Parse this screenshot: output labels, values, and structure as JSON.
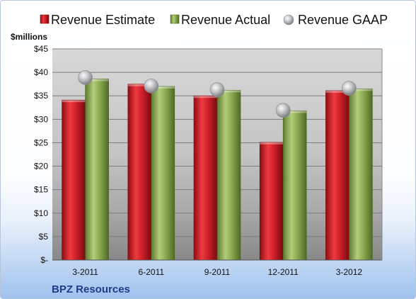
{
  "chart_data": {
    "type": "bar",
    "y_unit_label": "$millions",
    "categories": [
      "3-2011",
      "6-2011",
      "9-2011",
      "12-2011",
      "3-2012"
    ],
    "series": [
      {
        "name": "Revenue Estimate",
        "kind": "bar",
        "color": "#d0202a",
        "values": [
          34.1,
          37.5,
          35.0,
          25.1,
          36.1
        ]
      },
      {
        "name": "Revenue Actual",
        "kind": "bar",
        "color": "#8cad52",
        "values": [
          38.6,
          37.0,
          36.2,
          31.8,
          36.5
        ]
      },
      {
        "name": "Revenue GAAP",
        "kind": "marker",
        "color": "#b9bcc2",
        "values": [
          38.9,
          37.1,
          36.3,
          31.9,
          36.6
        ]
      }
    ],
    "y_ticks": [
      "$-",
      "$5",
      "$10",
      "$15",
      "$20",
      "$25",
      "$30",
      "$35",
      "$40",
      "$45"
    ],
    "ylim": [
      0,
      45
    ],
    "y_step": 5,
    "grid": true,
    "legend_position": "top"
  },
  "footer": {
    "company": "BPZ Resources"
  }
}
